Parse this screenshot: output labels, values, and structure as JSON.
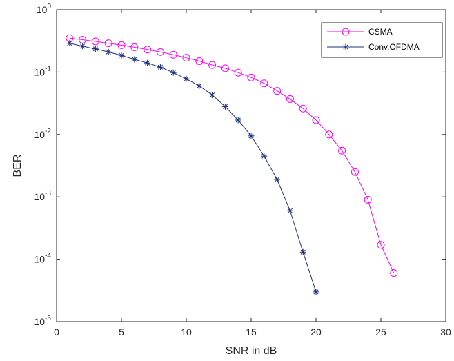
{
  "chart_data": {
    "type": "line",
    "title": "",
    "xlabel": "SNR in dB",
    "ylabel": "BER",
    "xlim": [
      0,
      30
    ],
    "ylim": [
      1e-05,
      1
    ],
    "yscale": "log",
    "grid": false,
    "legend_position": "top-right",
    "x_ticks": [
      "0",
      "5",
      "10",
      "15",
      "20",
      "25",
      "30"
    ],
    "y_ticks": [
      {
        "base": "10",
        "exp": "0"
      },
      {
        "base": "10",
        "exp": "-1"
      },
      {
        "base": "10",
        "exp": "-2"
      },
      {
        "base": "10",
        "exp": "-3"
      },
      {
        "base": "10",
        "exp": "-4"
      },
      {
        "base": "10",
        "exp": "-5"
      }
    ],
    "series": [
      {
        "name": "CSMA",
        "color": "#ff00ff",
        "marker": "circle",
        "x": [
          1,
          2,
          3,
          4,
          5,
          6,
          7,
          8,
          9,
          10,
          11,
          12,
          13,
          14,
          15,
          16,
          17,
          18,
          19,
          20,
          21,
          22,
          23,
          24,
          25,
          26
        ],
        "y": [
          0.35,
          0.33,
          0.31,
          0.29,
          0.27,
          0.25,
          0.23,
          0.21,
          0.19,
          0.17,
          0.15,
          0.13,
          0.115,
          0.098,
          0.082,
          0.066,
          0.05,
          0.037,
          0.026,
          0.017,
          0.01,
          0.0055,
          0.0025,
          0.0009,
          0.00017,
          6e-05
        ]
      },
      {
        "name": "Conv.OFDMA",
        "color": "#1f2f7a",
        "marker": "asterisk",
        "x": [
          1,
          2,
          3,
          4,
          5,
          6,
          7,
          8,
          9,
          10,
          11,
          12,
          13,
          14,
          15,
          16,
          17,
          18,
          19,
          20
        ],
        "y": [
          0.29,
          0.26,
          0.235,
          0.21,
          0.185,
          0.16,
          0.14,
          0.12,
          0.098,
          0.078,
          0.06,
          0.043,
          0.028,
          0.017,
          0.0095,
          0.0045,
          0.0019,
          0.0006,
          0.00013,
          3e-05
        ]
      }
    ]
  }
}
